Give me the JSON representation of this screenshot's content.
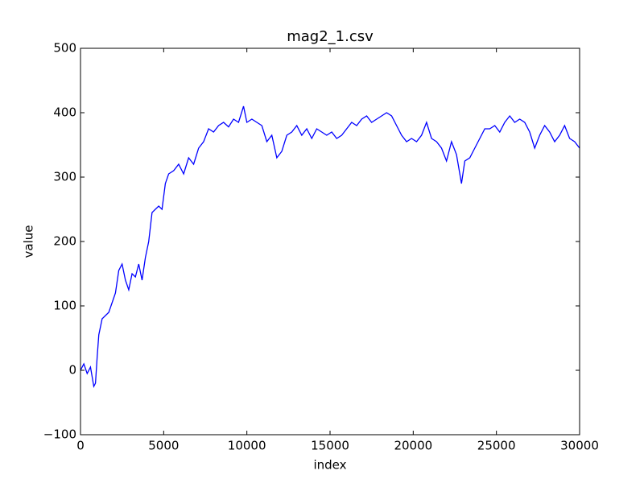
{
  "chart_data": {
    "type": "line",
    "title": "mag2_1.csv",
    "x_label": "index",
    "y_label": "value",
    "x": [
      0,
      200,
      400,
      600,
      800,
      900,
      1000,
      1100,
      1300,
      1500,
      1700,
      1900,
      2100,
      2300,
      2500,
      2700,
      2900,
      3100,
      3300,
      3500,
      3700,
      3900,
      4100,
      4300,
      4500,
      4700,
      4900,
      5100,
      5300,
      5600,
      5900,
      6200,
      6500,
      6800,
      7100,
      7400,
      7700,
      8000,
      8300,
      8600,
      8900,
      9200,
      9500,
      9800,
      10000,
      10300,
      10600,
      10900,
      11200,
      11500,
      11800,
      12100,
      12400,
      12700,
      13000,
      13300,
      13600,
      13900,
      14200,
      14500,
      14800,
      15100,
      15400,
      15700,
      16000,
      16300,
      16600,
      16900,
      17200,
      17500,
      17800,
      18100,
      18400,
      18700,
      19000,
      19300,
      19600,
      19900,
      20200,
      20500,
      20800,
      21100,
      21400,
      21700,
      22000,
      22300,
      22600,
      22900,
      23100,
      23400,
      23700,
      24000,
      24300,
      24600,
      24900,
      25200,
      25500,
      25800,
      26100,
      26400,
      26700,
      27000,
      27300,
      27600,
      27900,
      28200,
      28500,
      28800,
      29100,
      29400,
      29700,
      30000
    ],
    "values": [
      0,
      10,
      -5,
      5,
      -25,
      -20,
      20,
      55,
      80,
      85,
      90,
      105,
      120,
      155,
      165,
      140,
      125,
      150,
      145,
      165,
      140,
      175,
      200,
      245,
      250,
      255,
      250,
      290,
      305,
      310,
      320,
      305,
      330,
      320,
      345,
      355,
      375,
      370,
      380,
      385,
      378,
      390,
      385,
      410,
      385,
      390,
      385,
      380,
      355,
      365,
      330,
      340,
      365,
      370,
      380,
      365,
      375,
      360,
      375,
      370,
      365,
      370,
      360,
      365,
      375,
      385,
      380,
      390,
      395,
      385,
      390,
      395,
      400,
      395,
      380,
      365,
      355,
      360,
      355,
      365,
      385,
      360,
      355,
      345,
      325,
      355,
      335,
      290,
      325,
      330,
      345,
      360,
      375,
      375,
      380,
      370,
      385,
      395,
      385,
      390,
      385,
      370,
      345,
      365,
      380,
      370,
      355,
      365,
      380,
      360,
      355,
      345
    ],
    "color": "#0000ff",
    "xlim": [
      0,
      30000
    ],
    "ylim": [
      -100,
      500
    ],
    "xticks": [
      0,
      5000,
      10000,
      15000,
      20000,
      25000,
      30000
    ],
    "yticks": [
      {
        "value": -100,
        "label": "−100"
      },
      0,
      100,
      200,
      300,
      400,
      500
    ]
  }
}
